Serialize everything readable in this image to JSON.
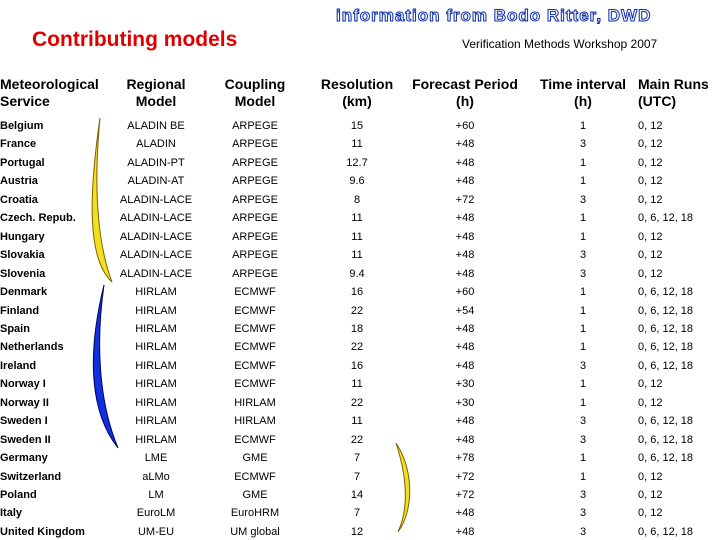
{
  "header": {
    "title": "Contributing models",
    "banner": "information from Bodo Ritter, DWD",
    "subtitle": "Verification Methods Workshop 2007"
  },
  "table": {
    "columns": [
      [
        "Meteorological",
        "Service"
      ],
      [
        "Regional",
        "Model"
      ],
      [
        "Coupling",
        "Model"
      ],
      [
        "Resolution",
        "(km)"
      ],
      [
        "Forecast Period",
        "(h)"
      ],
      [
        "Time interval",
        "(h)"
      ],
      [
        "Main Runs",
        "(UTC)"
      ]
    ],
    "rows": [
      [
        "Belgium",
        "ALADIN BE",
        "ARPEGE",
        "15",
        "+60",
        "1",
        "0, 12"
      ],
      [
        "France",
        "ALADIN",
        "ARPEGE",
        "11",
        "+48",
        "3",
        "0, 12"
      ],
      [
        "Portugal",
        "ALADIN-PT",
        "ARPEGE",
        "12.7",
        "+48",
        "1",
        "0, 12"
      ],
      [
        "Austria",
        "ALADIN-AT",
        "ARPEGE",
        "9.6",
        "+48",
        "1",
        "0, 12"
      ],
      [
        "Croatia",
        "ALADIN-LACE",
        "ARPEGE",
        "8",
        "+72",
        "3",
        "0, 12"
      ],
      [
        "Czech. Repub.",
        "ALADIN-LACE",
        "ARPEGE",
        "11",
        "+48",
        "1",
        "0, 6, 12, 18"
      ],
      [
        "Hungary",
        "ALADIN-LACE",
        "ARPEGE",
        "11",
        "+48",
        "1",
        "0, 12"
      ],
      [
        "Slovakia",
        "ALADIN-LACE",
        "ARPEGE",
        "11",
        "+48",
        "3",
        "0, 12"
      ],
      [
        "Slovenia",
        "ALADIN-LACE",
        "ARPEGE",
        "9.4",
        "+48",
        "3",
        "0, 12"
      ],
      [
        "Denmark",
        "HIRLAM",
        "ECMWF",
        "16",
        "+60",
        "1",
        "0, 6, 12, 18"
      ],
      [
        "Finland",
        "HIRLAM",
        "ECMWF",
        "22",
        "+54",
        "1",
        "0, 6, 12, 18"
      ],
      [
        "Spain",
        "HIRLAM",
        "ECMWF",
        "18",
        "+48",
        "1",
        "0, 6, 12, 18"
      ],
      [
        "Netherlands",
        "HIRLAM",
        "ECMWF",
        "22",
        "+48",
        "1",
        "0, 6, 12, 18"
      ],
      [
        "Ireland",
        "HIRLAM",
        "ECMWF",
        "16",
        "+48",
        "3",
        "0, 6, 12, 18"
      ],
      [
        "Norway I",
        "HIRLAM",
        "ECMWF",
        "11",
        "+30",
        "1",
        "0, 12"
      ],
      [
        "Norway II",
        "HIRLAM",
        "HIRLAM",
        "22",
        "+30",
        "1",
        "0, 12"
      ],
      [
        "Sweden I",
        "HIRLAM",
        "HIRLAM",
        "11",
        "+48",
        "3",
        "0, 6, 12, 18"
      ],
      [
        "Sweden II",
        "HIRLAM",
        "ECMWF",
        "22",
        "+48",
        "3",
        "0, 6, 12, 18"
      ],
      [
        "Germany",
        "LME",
        "GME",
        "7",
        "+78",
        "1",
        "0, 6, 12, 18"
      ],
      [
        "Switzerland",
        "aLMo",
        "ECMWF",
        "7",
        "+72",
        "1",
        "0, 12"
      ],
      [
        "Poland",
        "LM",
        "GME",
        "14",
        "+72",
        "3",
        "0, 12"
      ],
      [
        "Italy",
        "EuroLM",
        "EuroHRM",
        "7",
        "+48",
        "3",
        "0, 12"
      ],
      [
        "United Kingdom",
        "UM-EU",
        "UM global",
        "12",
        "+48",
        "3",
        "0, 6, 12, 18"
      ]
    ]
  }
}
